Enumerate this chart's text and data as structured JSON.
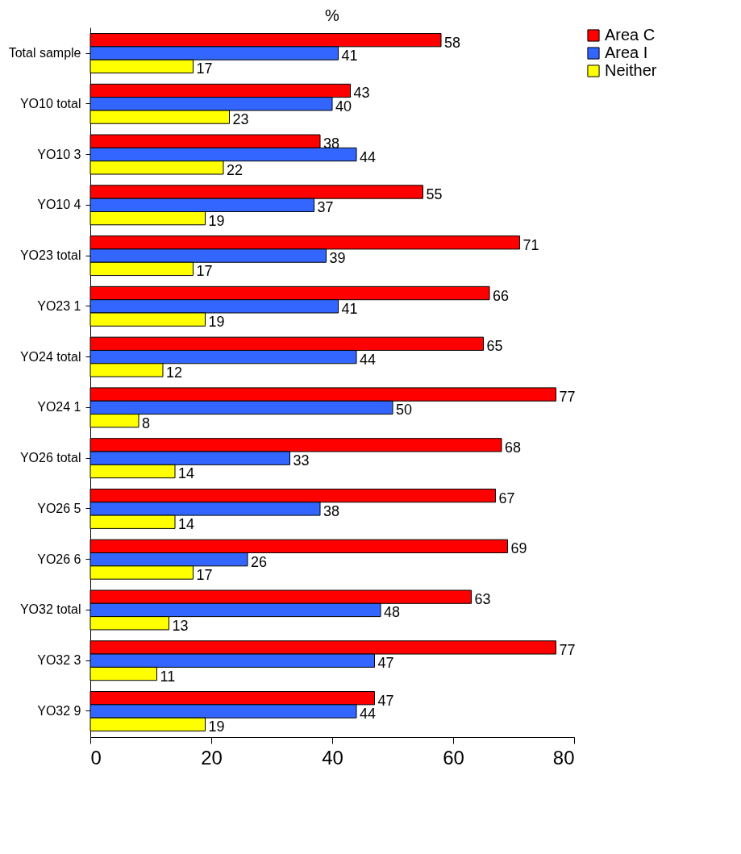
{
  "chart_data": {
    "type": "bar",
    "orientation": "horizontal",
    "title": "%",
    "categories": [
      "Total sample",
      "YO10 total",
      "YO10 3",
      "YO10 4",
      "YO23 total",
      "YO23 1",
      "YO24 total",
      "YO24 1",
      "YO26 total",
      "YO26 5",
      "YO26 6",
      "YO32 total",
      "YO32 3",
      "YO32 9"
    ],
    "series": [
      {
        "name": "Area C",
        "color": "#ff0000",
        "values": [
          58,
          43,
          38,
          55,
          71,
          66,
          65,
          77,
          68,
          67,
          69,
          63,
          77,
          47
        ]
      },
      {
        "name": "Area I",
        "color": "#3366ff",
        "values": [
          41,
          40,
          44,
          37,
          39,
          41,
          44,
          50,
          33,
          38,
          26,
          48,
          47,
          44
        ]
      },
      {
        "name": "Neither",
        "color": "#ffff00",
        "values": [
          17,
          23,
          22,
          19,
          17,
          19,
          12,
          8,
          14,
          14,
          17,
          13,
          11,
          19
        ]
      }
    ],
    "xlim": [
      0,
      80
    ],
    "xticks": [
      0,
      20,
      40,
      60,
      80
    ],
    "data_labels": true,
    "legend": "right",
    "grid": false
  }
}
